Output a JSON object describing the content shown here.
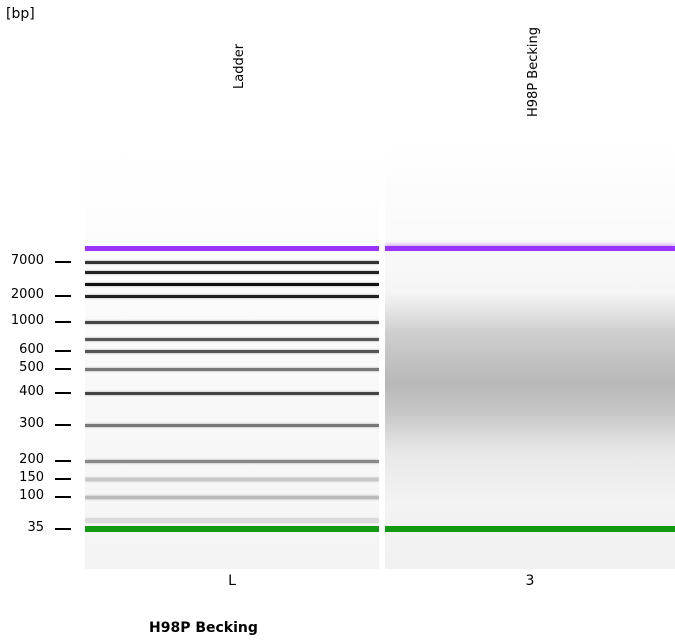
{
  "unit_label": "[bp]",
  "lane_titles": [
    "Ladder",
    "H98P Becking"
  ],
  "lane_ids": [
    "L",
    "3"
  ],
  "sample_name": "H98P Becking",
  "colors": {
    "upper_marker": "#9933ff",
    "lower_marker": "#119911"
  },
  "chart_data": {
    "type": "gel",
    "unit": "[bp]",
    "axis_ticks": [
      7000,
      2000,
      1000,
      600,
      500,
      400,
      300,
      200,
      150,
      100,
      35
    ],
    "lanes": [
      {
        "title": "Ladder",
        "id": "L",
        "bands_bp": [
          10380,
          7000,
          5000,
          3000,
          2000,
          1000,
          700,
          600,
          500,
          400,
          300,
          200,
          150,
          100,
          50,
          35
        ],
        "upper_marker_bp": 10380,
        "lower_marker_bp": 35
      },
      {
        "title": "H98P Becking",
        "id": "3",
        "smear_range_bp": [
          300,
          1000
        ],
        "smear_peak_bp": 500,
        "upper_marker_bp": 10380,
        "lower_marker_bp": 35
      }
    ]
  }
}
